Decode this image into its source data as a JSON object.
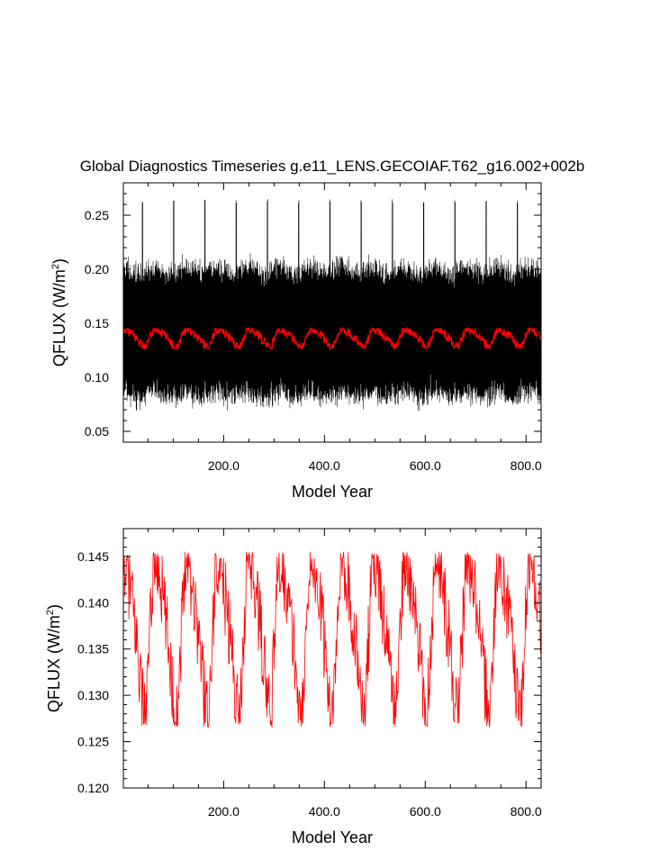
{
  "chart_data": [
    {
      "type": "line",
      "title": "Global Diagnostics Timeseries g.e11_LENS.GECOIAF.T62_g16.002+002b",
      "xlabel": "Model Year",
      "ylabel_main": "QFLUX (W/m",
      "ylabel_sup": "2",
      "ylabel_close": ")",
      "xlim": [
        1,
        830
      ],
      "ylim": [
        0.04,
        0.28
      ],
      "xticks": [
        200,
        400,
        600,
        800
      ],
      "xtick_labels": [
        "200.0",
        "400.0",
        "600.0",
        "800.0"
      ],
      "yticks": [
        0.05,
        0.1,
        0.15,
        0.2,
        0.25
      ],
      "ytick_labels": [
        "0.05",
        "0.10",
        "0.15",
        "0.20",
        "0.25"
      ],
      "series": [
        {
          "color": "#000000",
          "kind": "monthly",
          "cycle_years": 62,
          "mean": [
            0.1385,
            0.145
          ],
          "amplitude": [
            0.05,
            0.062
          ],
          "spike_max": 0.265
        },
        {
          "color": "#ff0000",
          "kind": "annual_mean",
          "cycle_years": 62,
          "range": [
            0.1265,
            0.1455
          ]
        }
      ]
    },
    {
      "type": "line",
      "title": "",
      "xlabel": "Model Year",
      "ylabel_main": "QFLUX (W/m",
      "ylabel_sup": "2",
      "ylabel_close": ")",
      "xlim": [
        1,
        830
      ],
      "ylim": [
        0.12,
        0.148
      ],
      "xticks": [
        200,
        400,
        600,
        800
      ],
      "xtick_labels": [
        "200.0",
        "400.0",
        "600.0",
        "800.0"
      ],
      "yticks": [
        0.12,
        0.125,
        0.13,
        0.135,
        0.14,
        0.145
      ],
      "ytick_labels": [
        "0.120",
        "0.125",
        "0.130",
        "0.135",
        "0.140",
        "0.145"
      ],
      "series": [
        {
          "color": "#ff0000",
          "kind": "annual_mean",
          "cycle_years": 62,
          "range": [
            0.1265,
            0.1455
          ]
        }
      ]
    }
  ]
}
